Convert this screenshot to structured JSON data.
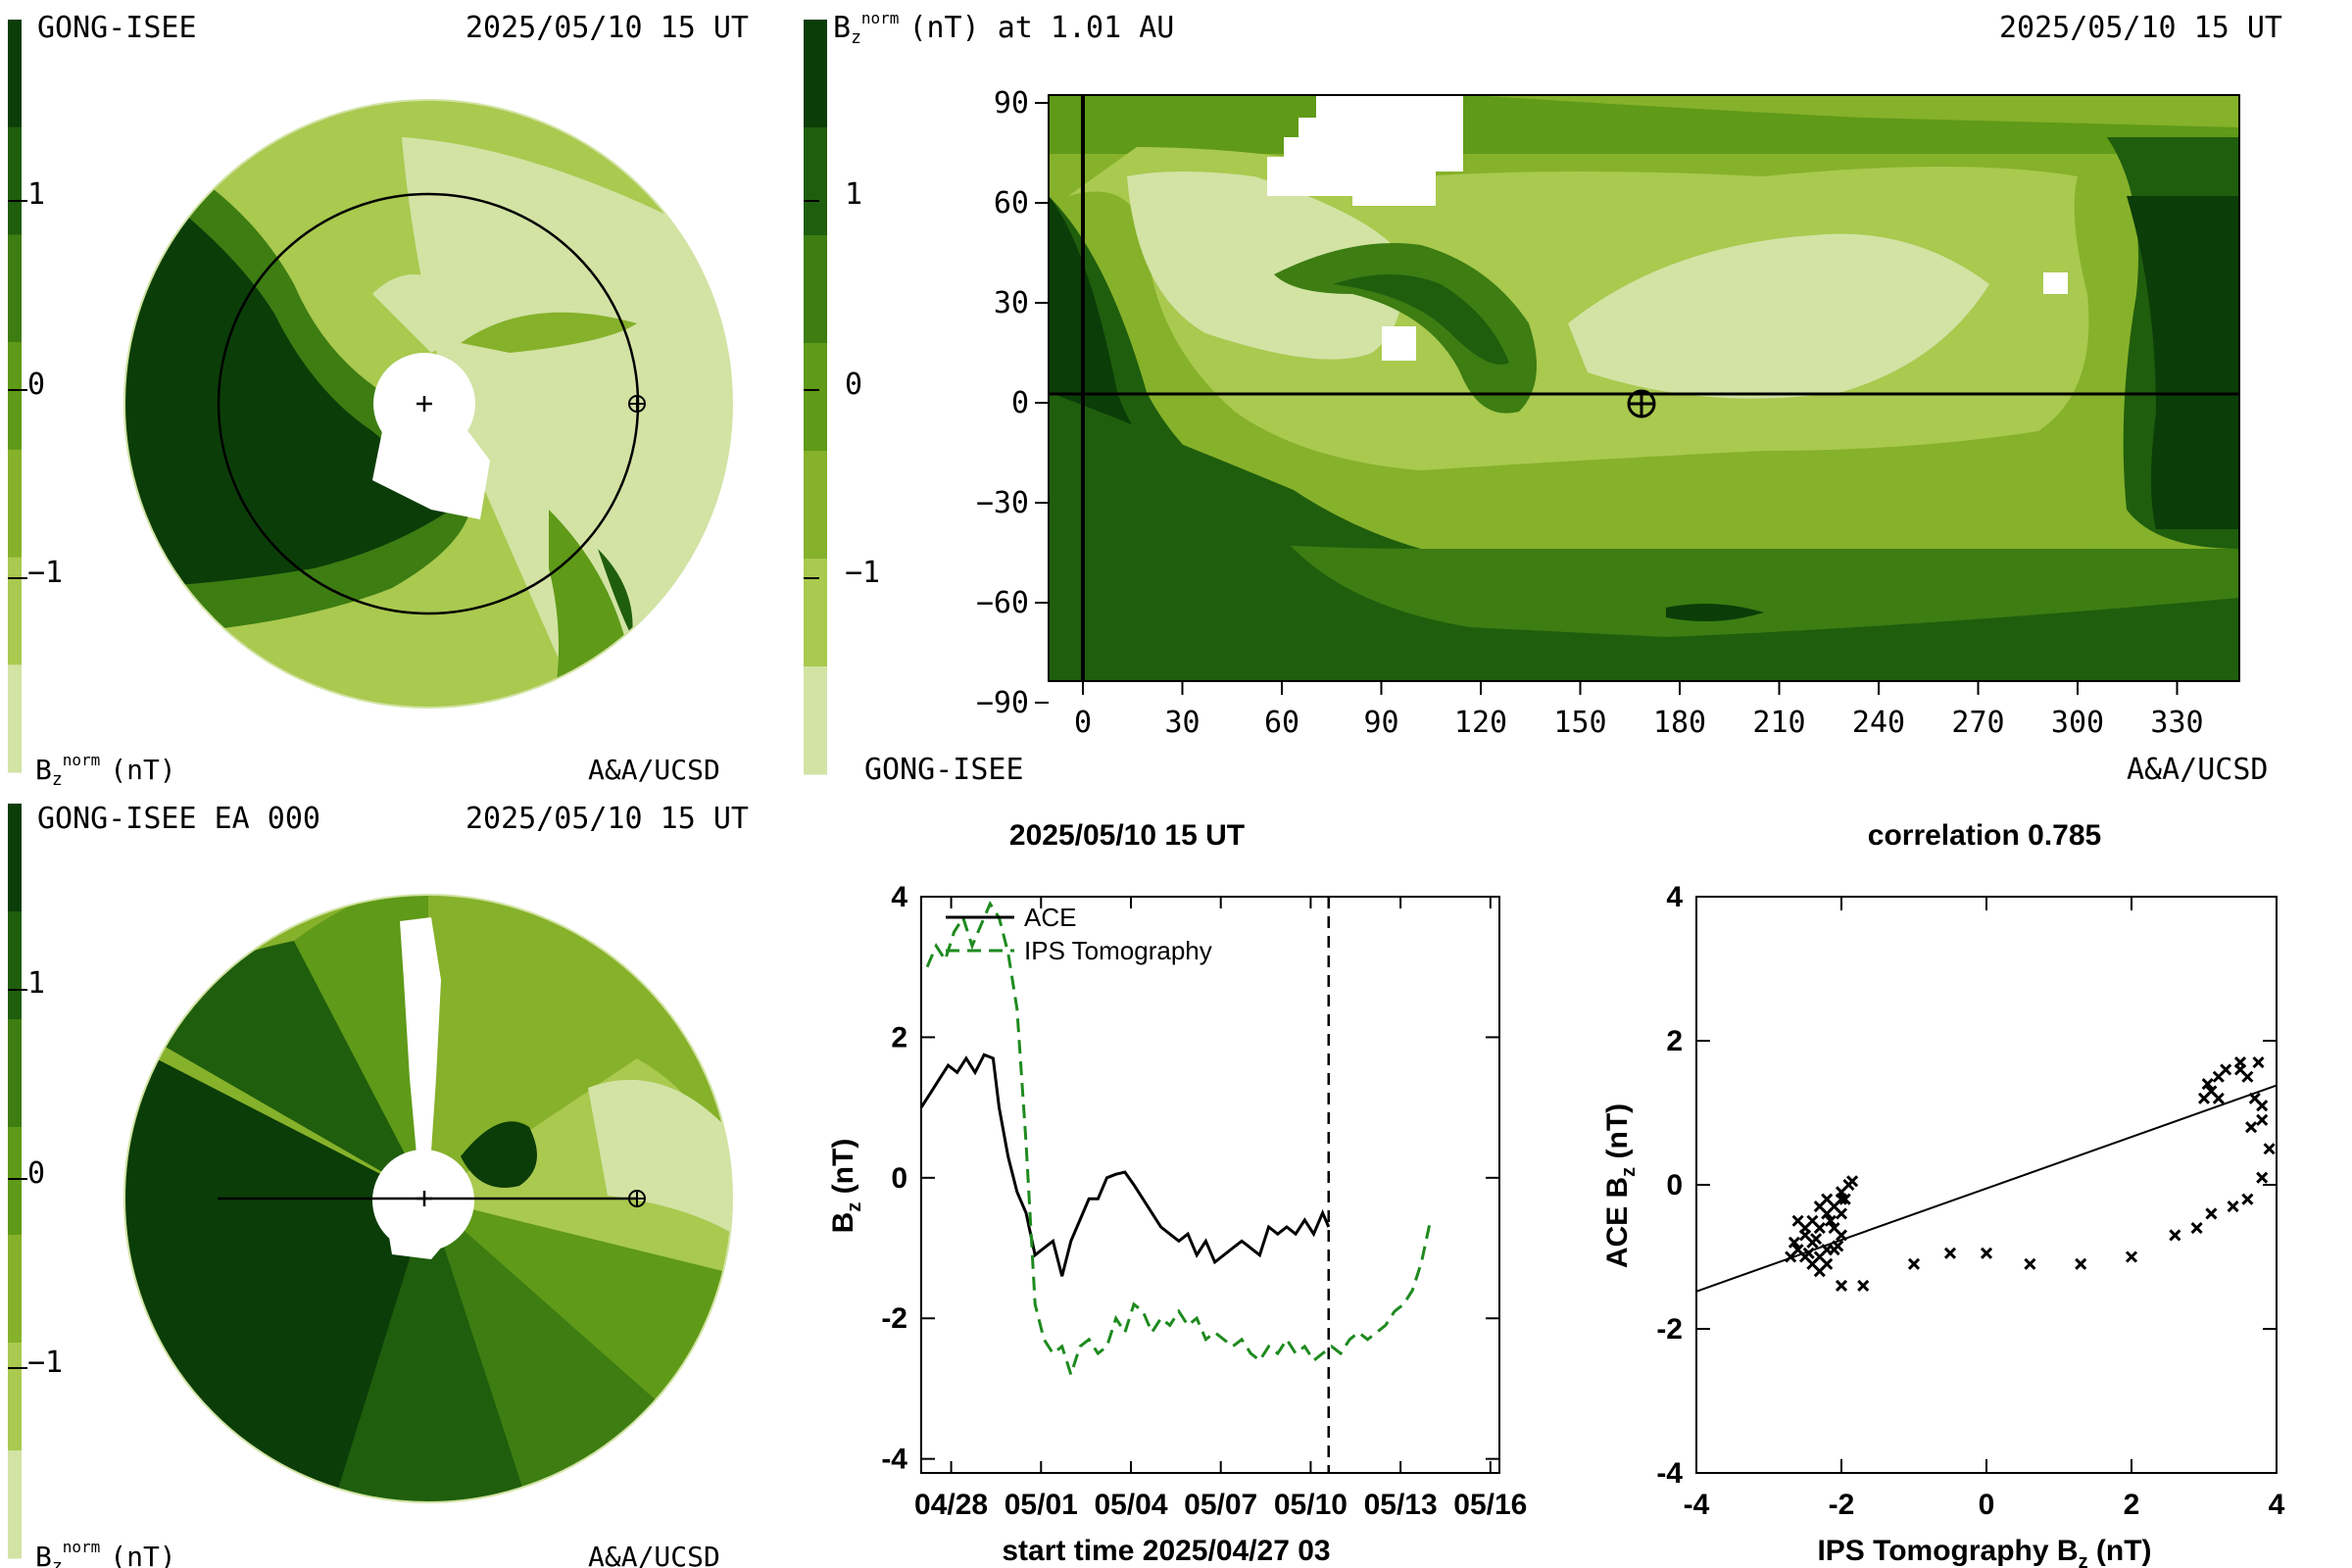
{
  "palette": [
    "#d2e3a4",
    "#a9c94f",
    "#86b12a",
    "#5f9a18",
    "#3d7d12",
    "#1f5e0d",
    "#0b3d08"
  ],
  "panel_ecliptic": {
    "left_label": "GONG-ISEE",
    "timestamp": "2025/05/10 15 UT",
    "colorbar_ticks": [
      "1",
      "0",
      "−1"
    ],
    "unit_prefix": "B",
    "unit_sub": "z",
    "unit_sup": "norm",
    "unit_suffix": "(nT)",
    "credit": "A&A/UCSD"
  },
  "panel_map": {
    "title_prefix": "B",
    "title_sub": "z",
    "title_sup": "norm",
    "title_suffix": "(nT) at 1.01 AU",
    "timestamp": "2025/05/10 15 UT",
    "colorbar_ticks": [
      "1",
      "0",
      "−1"
    ],
    "left_label": "GONG-ISEE",
    "credit": "A&A/UCSD",
    "x_ticks": [
      "0",
      "30",
      "60",
      "90",
      "120",
      "150",
      "180",
      "210",
      "240",
      "270",
      "300",
      "330"
    ],
    "y_ticks": [
      "90",
      "60",
      "30",
      "0",
      "−30",
      "−60",
      "−90"
    ]
  },
  "panel_meridional": {
    "left_label": "GONG-ISEE EA 000",
    "timestamp": "2025/05/10 15 UT",
    "colorbar_ticks": [
      "1",
      "0",
      "−1"
    ],
    "unit_prefix": "B",
    "unit_sub": "z",
    "unit_sup": "norm",
    "unit_suffix": "(nT)",
    "credit": "A&A/UCSD"
  },
  "chart_data": [
    {
      "type": "line",
      "title": "2025/05/10 15 UT",
      "xlabel": "start time 2025/04/27 03",
      "ylabel_prefix": "B",
      "ylabel_sub": "z",
      "ylabel_suffix": " (nT)",
      "x_ticks": [
        "04/28",
        "05/01",
        "05/04",
        "05/07",
        "05/10",
        "05/13",
        "05/16"
      ],
      "y_ticks": [
        "4",
        "2",
        "0",
        "-2",
        "-4"
      ],
      "xlim": [
        0,
        19.3
      ],
      "ylim": [
        -4.2,
        4.0
      ],
      "vline_x": 13.6,
      "legend": [
        "ACE",
        "IPS Tomography"
      ],
      "series": [
        {
          "name": "ACE",
          "x": [
            0.0,
            0.3,
            0.6,
            0.9,
            1.2,
            1.5,
            1.8,
            2.1,
            2.4,
            2.6,
            2.9,
            3.2,
            3.5,
            3.8,
            4.1,
            4.4,
            4.7,
            5.0,
            5.3,
            5.6,
            5.9,
            6.2,
            6.5,
            6.8,
            7.1,
            7.4,
            7.7,
            8.0,
            8.3,
            8.6,
            8.9,
            9.2,
            9.5,
            9.8,
            10.1,
            10.4,
            10.7,
            11.0,
            11.3,
            11.6,
            11.9,
            12.2,
            12.5,
            12.8,
            13.1,
            13.4,
            13.6
          ],
          "y": [
            1.0,
            1.2,
            1.4,
            1.6,
            1.5,
            1.7,
            1.5,
            1.75,
            1.7,
            1.0,
            0.3,
            -0.2,
            -0.5,
            -1.1,
            -1.0,
            -0.9,
            -1.4,
            -0.9,
            -0.6,
            -0.3,
            -0.3,
            0.0,
            0.05,
            0.08,
            -0.1,
            -0.3,
            -0.5,
            -0.7,
            -0.8,
            -0.9,
            -0.8,
            -1.1,
            -0.9,
            -1.2,
            -1.1,
            -1.0,
            -0.9,
            -1.0,
            -1.1,
            -0.7,
            -0.8,
            -0.7,
            -0.8,
            -0.6,
            -0.8,
            -0.5,
            -0.7
          ]
        },
        {
          "name": "IPS Tomography",
          "x": [
            0.2,
            0.5,
            0.8,
            1.1,
            1.4,
            1.7,
            2.0,
            2.3,
            2.6,
            2.9,
            3.2,
            3.5,
            3.8,
            4.1,
            4.4,
            4.7,
            5.0,
            5.3,
            5.6,
            5.9,
            6.2,
            6.5,
            6.8,
            7.1,
            7.4,
            7.7,
            8.0,
            8.3,
            8.6,
            8.9,
            9.2,
            9.5,
            9.8,
            10.1,
            10.4,
            10.7,
            11.0,
            11.3,
            11.6,
            11.9,
            12.2,
            12.5,
            12.8,
            13.1,
            13.4,
            13.7,
            14.0,
            14.3,
            14.6,
            14.9,
            15.2,
            15.5,
            15.8,
            16.1,
            16.4,
            16.7,
            17.0
          ],
          "y": [
            3.0,
            3.3,
            3.1,
            3.5,
            3.7,
            3.3,
            3.6,
            3.9,
            3.7,
            3.2,
            2.4,
            0.5,
            -1.8,
            -2.3,
            -2.5,
            -2.4,
            -2.8,
            -2.4,
            -2.3,
            -2.5,
            -2.4,
            -2.0,
            -2.2,
            -1.8,
            -1.9,
            -2.2,
            -2.0,
            -2.1,
            -1.9,
            -2.1,
            -2.0,
            -2.3,
            -2.2,
            -2.3,
            -2.4,
            -2.3,
            -2.5,
            -2.6,
            -2.4,
            -2.5,
            -2.3,
            -2.5,
            -2.4,
            -2.6,
            -2.5,
            -2.4,
            -2.5,
            -2.3,
            -2.2,
            -2.3,
            -2.2,
            -2.1,
            -1.9,
            -1.8,
            -1.6,
            -1.2,
            -0.6
          ]
        }
      ]
    },
    {
      "type": "scatter",
      "title": "correlation 0.785",
      "xlabel_prefix": "IPS Tomography B",
      "xlabel_sub": "z",
      "xlabel_suffix": " (nT)",
      "ylabel_prefix": "ACE B",
      "ylabel_sub": "z",
      "ylabel_suffix": " (nT)",
      "x_ticks": [
        "-4",
        "-2",
        "0",
        "2",
        "4"
      ],
      "y_ticks": [
        "4",
        "2",
        "0",
        "-2",
        "-4"
      ],
      "xlim": [
        -4,
        4
      ],
      "ylim": [
        -4,
        4
      ],
      "fit_line": [
        [
          -4.0,
          -1.48
        ],
        [
          4.0,
          1.38
        ]
      ],
      "points": [
        [
          -2.6,
          -0.5
        ],
        [
          -2.5,
          -0.7
        ],
        [
          -2.4,
          -0.8
        ],
        [
          -2.3,
          -0.6
        ],
        [
          -2.2,
          -0.4
        ],
        [
          -2.1,
          -0.3
        ],
        [
          -2.0,
          -0.1
        ],
        [
          -1.9,
          0.0
        ],
        [
          -2.0,
          -0.2
        ],
        [
          -2.2,
          -0.9
        ],
        [
          -2.3,
          -1.0
        ],
        [
          -2.4,
          -1.1
        ],
        [
          -2.5,
          -1.0
        ],
        [
          -2.6,
          -0.9
        ],
        [
          -2.5,
          -0.6
        ],
        [
          -2.4,
          -0.5
        ],
        [
          -2.3,
          -0.3
        ],
        [
          -2.2,
          -0.2
        ],
        [
          -2.1,
          -0.6
        ],
        [
          -2.0,
          -0.7
        ],
        [
          -2.2,
          -1.1
        ],
        [
          -2.3,
          -1.2
        ],
        [
          -2.1,
          -0.9
        ],
        [
          -2.0,
          -0.4
        ],
        [
          -1.95,
          -0.2
        ],
        [
          -1.85,
          0.05
        ],
        [
          -2.7,
          -1.0
        ],
        [
          -2.65,
          -0.8
        ],
        [
          -2.45,
          -0.95
        ],
        [
          -2.35,
          -0.75
        ],
        [
          -2.15,
          -0.5
        ],
        [
          -2.05,
          -0.85
        ],
        [
          -2.0,
          -1.4
        ],
        [
          -1.7,
          -1.4
        ],
        [
          -1.0,
          -1.1
        ],
        [
          -0.5,
          -0.95
        ],
        [
          0.0,
          -0.95
        ],
        [
          0.6,
          -1.1
        ],
        [
          1.3,
          -1.1
        ],
        [
          2.0,
          -1.0
        ],
        [
          2.6,
          -0.7
        ],
        [
          2.9,
          -0.6
        ],
        [
          3.1,
          -0.4
        ],
        [
          3.4,
          -0.3
        ],
        [
          3.6,
          -0.2
        ],
        [
          3.8,
          0.1
        ],
        [
          3.9,
          0.5
        ],
        [
          3.8,
          0.9
        ],
        [
          3.7,
          1.2
        ],
        [
          3.6,
          1.5
        ],
        [
          3.5,
          1.7
        ],
        [
          3.3,
          1.6
        ],
        [
          3.2,
          1.5
        ],
        [
          3.1,
          1.3
        ],
        [
          3.0,
          1.2
        ],
        [
          3.05,
          1.4
        ],
        [
          3.2,
          1.2
        ],
        [
          3.5,
          1.6
        ],
        [
          3.75,
          1.7
        ],
        [
          3.8,
          1.1
        ],
        [
          3.65,
          0.8
        ]
      ]
    }
  ]
}
